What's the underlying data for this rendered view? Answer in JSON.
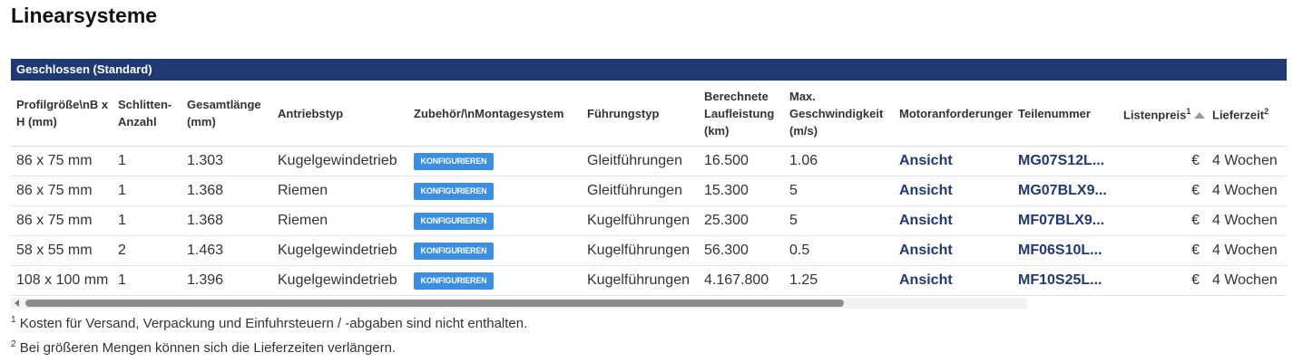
{
  "page": {
    "title": "Linearsysteme"
  },
  "group": {
    "title": "Geschlossen (Standard)"
  },
  "columns": [
    "Profilgröße\\nB x H (mm)",
    "Schlitten-Anzahl",
    "Gesamtlänge (mm)",
    "Antriebstyp",
    "Zubehör/\\nMontagesystem",
    "Führungstyp",
    "Berechnete Laufleistung (km)",
    "Max. Geschwindigkeit (m/s)",
    "Motoranforderungen",
    "Teilenummer",
    "Listenpreis",
    "Lieferzeit"
  ],
  "column_superscripts": {
    "price": "1",
    "delivery": "2"
  },
  "configure_label": "KONFIGURIEREN",
  "rows": [
    {
      "size": "86 x 75 mm",
      "carriages": "1",
      "length": "1.303",
      "drive": "Kugelgewindetrieb",
      "guide": "Gleitführungen",
      "mileage": "16.500",
      "speed": "1.06",
      "motor": "Ansicht",
      "part": "MG07S12L...",
      "price": "€",
      "delivery": "4 Wochen"
    },
    {
      "size": "86 x 75 mm",
      "carriages": "1",
      "length": "1.368",
      "drive": "Riemen",
      "guide": "Gleitführungen",
      "mileage": "15.300",
      "speed": "5",
      "motor": "Ansicht",
      "part": "MG07BLX9...",
      "price": "€",
      "delivery": "4 Wochen"
    },
    {
      "size": "86 x 75 mm",
      "carriages": "1",
      "length": "1.368",
      "drive": "Riemen",
      "guide": "Kugelführungen",
      "mileage": "25.300",
      "speed": "5",
      "motor": "Ansicht",
      "part": "MF07BLX9...",
      "price": "€",
      "delivery": "4 Wochen"
    },
    {
      "size": "58 x 55 mm",
      "carriages": "2",
      "length": "1.463",
      "drive": "Kugelgewindetrieb",
      "guide": "Kugelführungen",
      "mileage": "56.300",
      "speed": "0.5",
      "motor": "Ansicht",
      "part": "MF06S10L...",
      "price": "€",
      "delivery": "4 Wochen"
    },
    {
      "size": "108 x 100 mm",
      "carriages": "1",
      "length": "1.396",
      "drive": "Kugelgewindetrieb",
      "guide": "Kugelführungen",
      "mileage": "4.167.800",
      "speed": "1.25",
      "motor": "Ansicht",
      "part": "MF10S25L...",
      "price": "€",
      "delivery": "4 Wochen"
    }
  ],
  "footnotes": [
    {
      "mark": "1",
      "text": "Kosten für Versand, Verpackung und Einfuhrsteuern / -abgaben sind nicht enthalten."
    },
    {
      "mark": "2",
      "text": "Bei größeren Mengen können sich die Lieferzeiten verlängern."
    }
  ]
}
